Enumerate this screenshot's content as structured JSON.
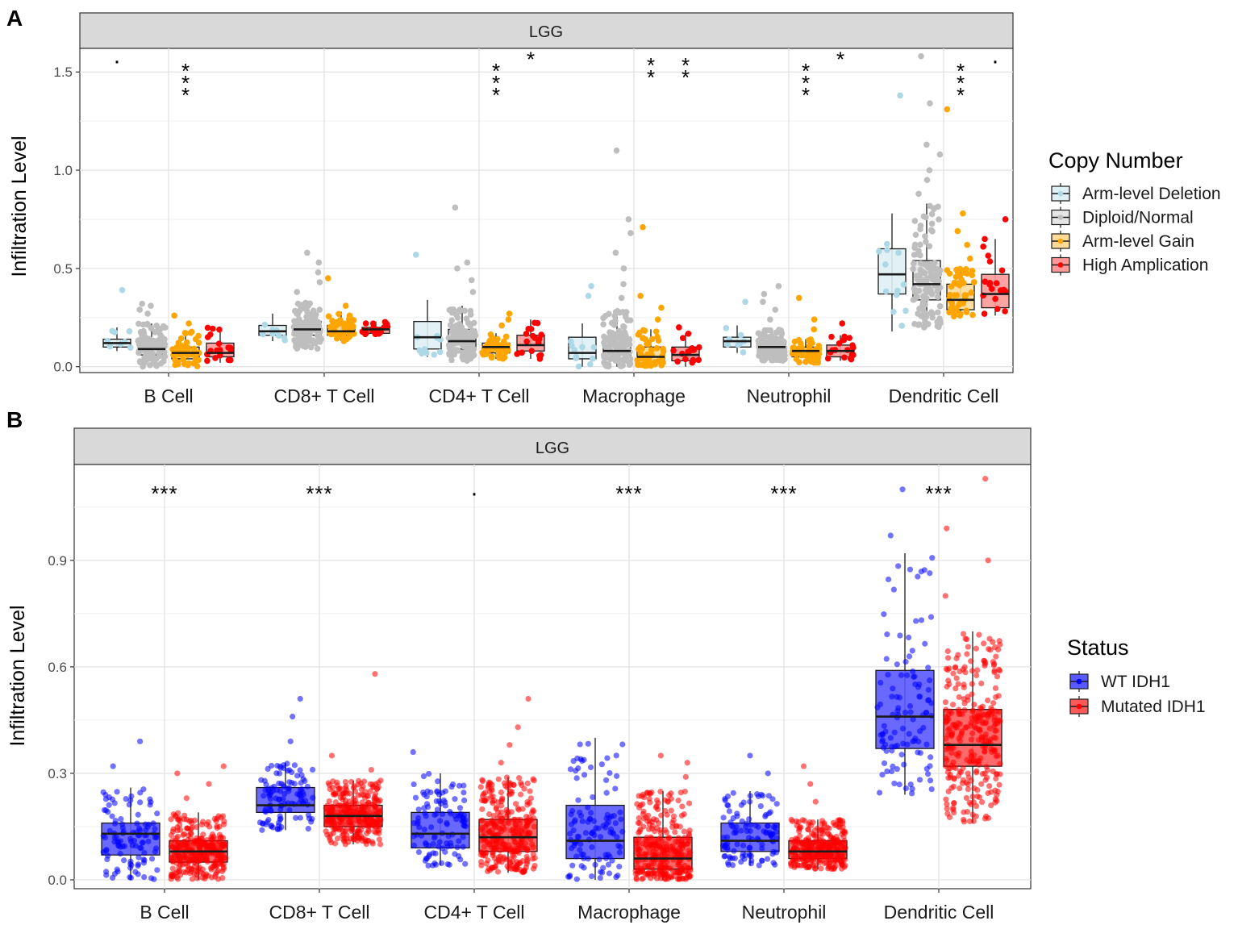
{
  "chart_data": [
    {
      "panel_label": "A",
      "type": "box",
      "strip_title": "LGG",
      "ylabel": "Infiltration Level",
      "ylim": [
        -0.03,
        1.62
      ],
      "yticks": [
        0.0,
        0.5,
        1.0,
        1.5
      ],
      "ytick_labels": [
        "0.0",
        "0.5",
        "1.0",
        "1.5"
      ],
      "categories": [
        "B Cell",
        "CD8+ T Cell",
        "CD4+ T Cell",
        "Macrophage",
        "Neutrophil",
        "Dendritic Cell"
      ],
      "legend_title": "Copy Number",
      "legend_position": "right",
      "series": [
        {
          "name": "Arm-level Deletion",
          "color": "#add8e6",
          "boxes": [
            {
              "q1": 0.1,
              "median": 0.12,
              "q3": 0.14,
              "lo": 0.08,
              "hi": 0.2,
              "out": [
                0.39
              ],
              "n": 8
            },
            {
              "q1": 0.16,
              "median": 0.18,
              "q3": 0.21,
              "lo": 0.13,
              "hi": 0.27,
              "out": [],
              "n": 9
            },
            {
              "q1": 0.09,
              "median": 0.15,
              "q3": 0.23,
              "lo": 0.05,
              "hi": 0.34,
              "out": [
                0.57
              ],
              "n": 10
            },
            {
              "q1": 0.04,
              "median": 0.07,
              "q3": 0.15,
              "lo": 0.0,
              "hi": 0.22,
              "out": [
                0.36,
                0.41
              ],
              "n": 10
            },
            {
              "q1": 0.1,
              "median": 0.13,
              "q3": 0.15,
              "lo": 0.07,
              "hi": 0.21,
              "out": [
                0.33
              ],
              "n": 8
            },
            {
              "q1": 0.37,
              "median": 0.47,
              "q3": 0.6,
              "lo": 0.18,
              "hi": 0.78,
              "out": [
                1.38
              ],
              "n": 12
            }
          ]
        },
        {
          "name": "Diploid/Normal",
          "color": "#bebebe",
          "boxes": [
            {
              "q1": 0.06,
              "median": 0.09,
              "q3": 0.14,
              "lo": 0.0,
              "hi": 0.22,
              "out": [
                0.27,
                0.29,
                0.31,
                0.32
              ],
              "n": 120
            },
            {
              "q1": 0.16,
              "median": 0.19,
              "q3": 0.23,
              "lo": 0.09,
              "hi": 0.33,
              "out": [
                0.38,
                0.43,
                0.48,
                0.53,
                0.58
              ],
              "n": 120
            },
            {
              "q1": 0.09,
              "median": 0.13,
              "q3": 0.19,
              "lo": 0.03,
              "hi": 0.31,
              "out": [
                0.38,
                0.44,
                0.5,
                0.53,
                0.81
              ],
              "n": 120
            },
            {
              "q1": 0.04,
              "median": 0.08,
              "q3": 0.15,
              "lo": 0.0,
              "hi": 0.29,
              "out": [
                0.35,
                0.42,
                0.5,
                0.58,
                0.68,
                0.75,
                1.1
              ],
              "n": 120
            },
            {
              "q1": 0.07,
              "median": 0.1,
              "q3": 0.13,
              "lo": 0.03,
              "hi": 0.19,
              "out": [
                0.24,
                0.29,
                0.33,
                0.37,
                0.41
              ],
              "n": 120
            },
            {
              "q1": 0.34,
              "median": 0.42,
              "q3": 0.54,
              "lo": 0.2,
              "hi": 0.83,
              "out": [
                0.88,
                0.95,
                1.0,
                1.08,
                1.13,
                1.34,
                1.58
              ],
              "n": 120
            }
          ]
        },
        {
          "name": "Arm-level Gain",
          "color": "#ffa500",
          "boxes": [
            {
              "q1": 0.04,
              "median": 0.07,
              "q3": 0.1,
              "lo": 0.0,
              "hi": 0.18,
              "out": [
                0.22,
                0.26
              ],
              "n": 50
            },
            {
              "q1": 0.16,
              "median": 0.18,
              "q3": 0.21,
              "lo": 0.13,
              "hi": 0.28,
              "out": [
                0.31,
                0.45
              ],
              "n": 50
            },
            {
              "q1": 0.07,
              "median": 0.1,
              "q3": 0.12,
              "lo": 0.04,
              "hi": 0.17,
              "out": [
                0.21,
                0.24,
                0.27
              ],
              "n": 50
            },
            {
              "q1": 0.02,
              "median": 0.05,
              "q3": 0.1,
              "lo": 0.0,
              "hi": 0.19,
              "out": [
                0.24,
                0.3,
                0.36,
                0.71
              ],
              "n": 50
            },
            {
              "q1": 0.05,
              "median": 0.08,
              "q3": 0.1,
              "lo": 0.02,
              "hi": 0.14,
              "out": [
                0.19,
                0.24,
                0.35
              ],
              "n": 50
            },
            {
              "q1": 0.29,
              "median": 0.34,
              "q3": 0.42,
              "lo": 0.25,
              "hi": 0.5,
              "out": [
                0.55,
                0.62,
                0.69,
                0.78,
                1.31
              ],
              "n": 50
            }
          ]
        },
        {
          "name": "High Amplication",
          "color": "#ff0000",
          "boxes": [
            {
              "q1": 0.05,
              "median": 0.07,
              "q3": 0.12,
              "lo": 0.02,
              "hi": 0.2,
              "out": [],
              "n": 18
            },
            {
              "q1": 0.17,
              "median": 0.19,
              "q3": 0.2,
              "lo": 0.15,
              "hi": 0.23,
              "out": [],
              "n": 18
            },
            {
              "q1": 0.08,
              "median": 0.11,
              "q3": 0.16,
              "lo": 0.04,
              "hi": 0.24,
              "out": [],
              "n": 18
            },
            {
              "q1": 0.03,
              "median": 0.06,
              "q3": 0.1,
              "lo": 0.0,
              "hi": 0.17,
              "out": [
                0.2
              ],
              "n": 18
            },
            {
              "q1": 0.05,
              "median": 0.08,
              "q3": 0.11,
              "lo": 0.03,
              "hi": 0.16,
              "out": [
                0.22
              ],
              "n": 18
            },
            {
              "q1": 0.3,
              "median": 0.37,
              "q3": 0.47,
              "lo": 0.26,
              "hi": 0.65,
              "out": [
                0.75
              ],
              "n": 18
            }
          ]
        }
      ],
      "annotations": [
        {
          "category": 0,
          "series": 0,
          "text": "·",
          "y": 1.55
        },
        {
          "category": 0,
          "series": 2,
          "text": "***",
          "y": 1.5,
          "vertical": true
        },
        {
          "category": 2,
          "series": 2,
          "text": "***",
          "y": 1.5,
          "vertical": true
        },
        {
          "category": 2,
          "series": 3,
          "text": "*",
          "y": 1.56,
          "vertical": true
        },
        {
          "category": 3,
          "series": 2,
          "text": "**",
          "y": 1.53,
          "vertical": true
        },
        {
          "category": 3,
          "series": 3,
          "text": "**",
          "y": 1.53,
          "vertical": true
        },
        {
          "category": 4,
          "series": 2,
          "text": "***",
          "y": 1.5,
          "vertical": true
        },
        {
          "category": 4,
          "series": 3,
          "text": "*",
          "y": 1.56,
          "vertical": true
        },
        {
          "category": 5,
          "series": 2,
          "text": "***",
          "y": 1.5,
          "vertical": true
        },
        {
          "category": 5,
          "series": 3,
          "text": "·",
          "y": 1.55
        }
      ]
    },
    {
      "panel_label": "B",
      "type": "box",
      "strip_title": "LGG",
      "ylabel": "Infiltration Level",
      "ylim": [
        -0.025,
        1.17
      ],
      "yticks": [
        0.0,
        0.3,
        0.6,
        0.9
      ],
      "ytick_labels": [
        "0.0",
        "0.3",
        "0.6",
        "0.9"
      ],
      "categories": [
        "B Cell",
        "CD8+ T Cell",
        "CD4+ T Cell",
        "Macrophage",
        "Neutrophil",
        "Dendritic Cell"
      ],
      "legend_title": "Status",
      "legend_position": "right",
      "series": [
        {
          "name": "WT IDH1",
          "color": "#0000ff",
          "boxes": [
            {
              "q1": 0.07,
              "median": 0.13,
              "q3": 0.16,
              "lo": 0.0,
              "hi": 0.26,
              "out": [
                0.32,
                0.39
              ],
              "n": 110
            },
            {
              "q1": 0.19,
              "median": 0.21,
              "q3": 0.26,
              "lo": 0.14,
              "hi": 0.33,
              "out": [
                0.39,
                0.46,
                0.51
              ],
              "n": 110
            },
            {
              "q1": 0.09,
              "median": 0.13,
              "q3": 0.19,
              "lo": 0.04,
              "hi": 0.3,
              "out": [
                0.36
              ],
              "n": 110
            },
            {
              "q1": 0.06,
              "median": 0.11,
              "q3": 0.21,
              "lo": 0.0,
              "hi": 0.4,
              "out": [],
              "n": 110
            },
            {
              "q1": 0.08,
              "median": 0.11,
              "q3": 0.16,
              "lo": 0.04,
              "hi": 0.25,
              "out": [
                0.3,
                0.35
              ],
              "n": 110
            },
            {
              "q1": 0.37,
              "median": 0.46,
              "q3": 0.59,
              "lo": 0.24,
              "hi": 0.92,
              "out": [
                0.97,
                1.1
              ],
              "n": 110
            }
          ]
        },
        {
          "name": "Mutated IDH1",
          "color": "#ff0000",
          "boxes": [
            {
              "q1": 0.05,
              "median": 0.08,
              "q3": 0.11,
              "lo": 0.0,
              "hi": 0.19,
              "out": [
                0.23,
                0.27,
                0.3,
                0.32
              ],
              "n": 300
            },
            {
              "q1": 0.15,
              "median": 0.18,
              "q3": 0.21,
              "lo": 0.1,
              "hi": 0.28,
              "out": [
                0.31,
                0.35,
                0.58
              ],
              "n": 300
            },
            {
              "q1": 0.08,
              "median": 0.12,
              "q3": 0.17,
              "lo": 0.02,
              "hi": 0.29,
              "out": [
                0.33,
                0.38,
                0.43,
                0.51
              ],
              "n": 300
            },
            {
              "q1": 0.03,
              "median": 0.06,
              "q3": 0.12,
              "lo": 0.0,
              "hi": 0.25,
              "out": [
                0.29,
                0.33,
                0.35
              ],
              "n": 300
            },
            {
              "q1": 0.06,
              "median": 0.08,
              "q3": 0.11,
              "lo": 0.03,
              "hi": 0.17,
              "out": [
                0.22,
                0.27,
                0.32
              ],
              "n": 300
            },
            {
              "q1": 0.32,
              "median": 0.38,
              "q3": 0.48,
              "lo": 0.16,
              "hi": 0.7,
              "out": [
                0.8,
                0.9,
                0.99,
                1.13
              ],
              "n": 300
            }
          ]
        }
      ],
      "annotations": [
        {
          "category": 0,
          "text": "***"
        },
        {
          "category": 1,
          "text": "***"
        },
        {
          "category": 2,
          "text": "·"
        },
        {
          "category": 3,
          "text": "***"
        },
        {
          "category": 4,
          "text": "***"
        },
        {
          "category": 5,
          "text": "***"
        }
      ]
    }
  ]
}
